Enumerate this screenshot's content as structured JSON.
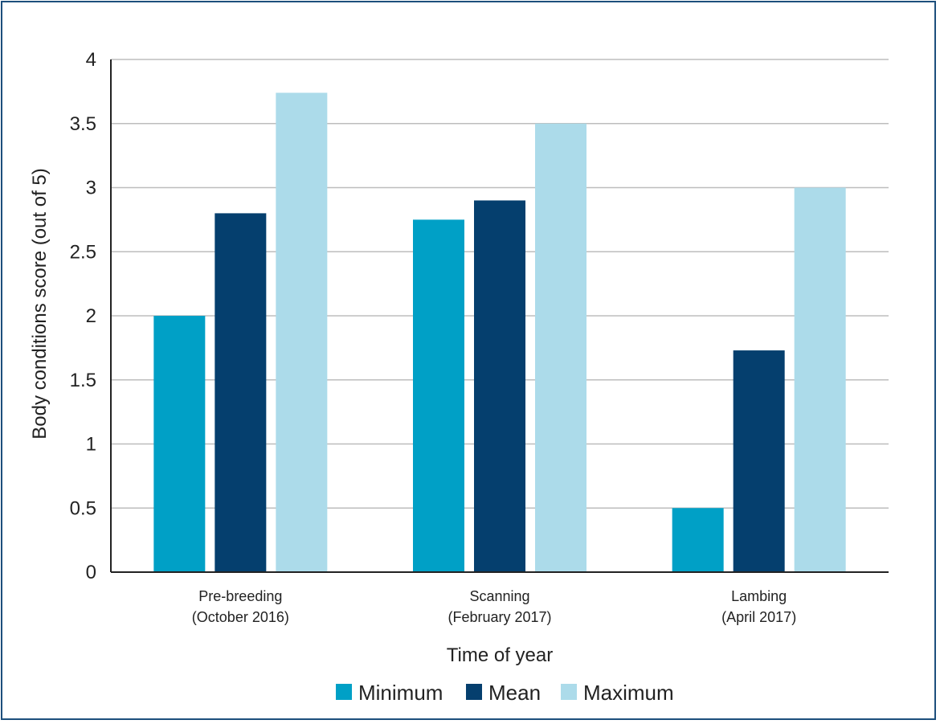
{
  "chart_data": {
    "type": "bar",
    "title": "",
    "xlabel": "Time of year",
    "ylabel": "Body conditions score (out of 5)",
    "ylim": [
      0,
      4
    ],
    "yticks": [
      "0",
      "0.5",
      "1",
      "1.5",
      "2",
      "2.5",
      "3",
      "3.5",
      "4"
    ],
    "grid": true,
    "legend_position": "bottom",
    "categories": [
      [
        "Pre-breeding",
        "(October 2016)"
      ],
      [
        "Scanning",
        "(February 2017)"
      ],
      [
        "Lambing",
        "(April 2017)"
      ]
    ],
    "series": [
      {
        "name": "Minimum",
        "color": "#00a0c6",
        "values": [
          2.0,
          2.75,
          0.5
        ]
      },
      {
        "name": "Mean",
        "color": "#053f6e",
        "values": [
          2.8,
          2.9,
          1.73
        ]
      },
      {
        "name": "Maximum",
        "color": "#acdbea",
        "values": [
          3.74,
          3.5,
          3.0
        ]
      }
    ]
  }
}
